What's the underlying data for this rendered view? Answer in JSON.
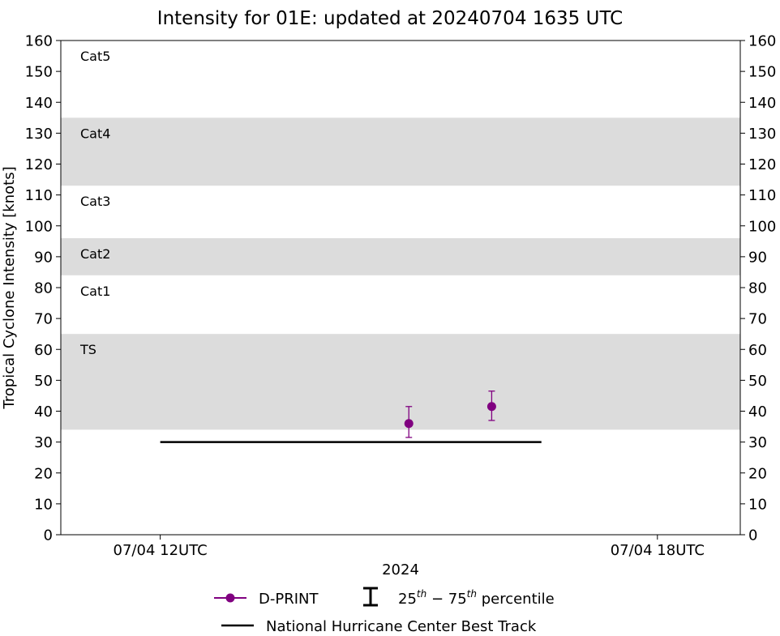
{
  "chart_data": {
    "type": "scatter",
    "title": "Intensity for 01E: updated at 20240704 1635 UTC",
    "xlabel": "2024",
    "ylabel": "Tropical Cyclone Intensity [knots]",
    "ylim": [
      0,
      160
    ],
    "yticks": [
      0,
      10,
      20,
      30,
      40,
      50,
      60,
      70,
      80,
      90,
      100,
      110,
      120,
      130,
      140,
      150,
      160
    ],
    "xlim": [
      "2024-07-04T10:48",
      "2024-07-04T19:00"
    ],
    "xticks": [
      {
        "value": "2024-07-04T12:00",
        "label": "07/04 12UTC"
      },
      {
        "value": "2024-07-04T18:00",
        "label": "07/04 18UTC"
      }
    ],
    "grid": false,
    "legend_position": "bottom",
    "category_bands": [
      {
        "label": "TS",
        "range": [
          34,
          65
        ],
        "shaded": true
      },
      {
        "label": "Cat1",
        "range": [
          65,
          84
        ],
        "shaded": false
      },
      {
        "label": "Cat2",
        "range": [
          84,
          96
        ],
        "shaded": true
      },
      {
        "label": "Cat3",
        "range": [
          96,
          113
        ],
        "shaded": false
      },
      {
        "label": "Cat4",
        "range": [
          113,
          135
        ],
        "shaded": true
      },
      {
        "label": "Cat5",
        "range": [
          135,
          160
        ],
        "shaded": false
      }
    ],
    "series": [
      {
        "name": "D-PRINT",
        "color": "#800080",
        "marker": "circle",
        "points": [
          {
            "x": "2024-07-04T15:00",
            "y": 36,
            "p25": 31.5,
            "p75": 41.5
          },
          {
            "x": "2024-07-04T16:00",
            "y": 41.5,
            "p25": 37,
            "p75": 46.5
          }
        ]
      },
      {
        "name": "National Hurricane Center Best Track",
        "color": "#000000",
        "line": true,
        "points": [
          {
            "x": "2024-07-04T12:00",
            "y": 30
          },
          {
            "x": "2024-07-04T16:36",
            "y": 30
          }
        ]
      }
    ],
    "legend": {
      "dprint_label": "D-PRINT",
      "percentile_label_pre": "25",
      "percentile_sup1": "th",
      "percentile_mid": " − 75",
      "percentile_sup2": "th",
      "percentile_post": " percentile",
      "besttrack_label": "National Hurricane Center Best Track"
    }
  }
}
